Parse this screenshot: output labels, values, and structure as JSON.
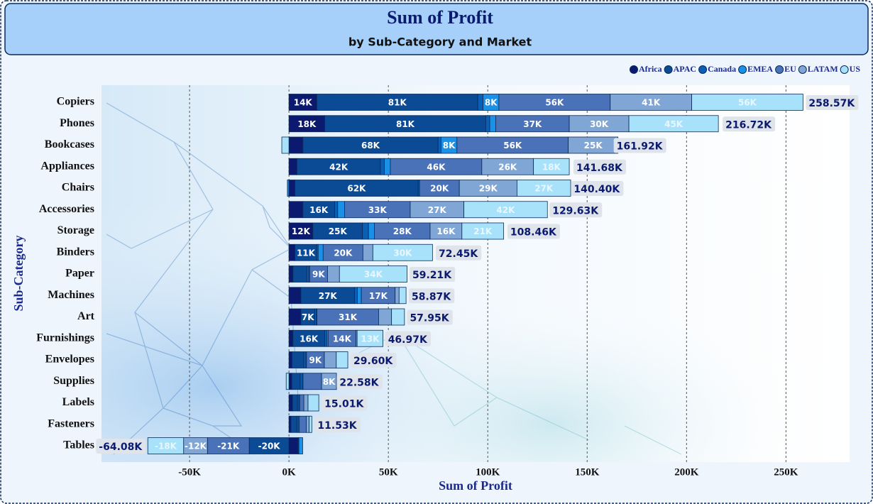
{
  "chart_data": {
    "type": "stacked-bar-horizontal",
    "title": "Sum of Profit",
    "subtitle": "by Sub-Category and Market",
    "x_label": "Sum of Profit",
    "y_label": "Sub-Category",
    "legend_position": "top-right",
    "grid": true,
    "categories": [
      "Copiers",
      "Phones",
      "Bookcases",
      "Appliances",
      "Chairs",
      "Accessories",
      "Storage",
      "Binders",
      "Paper",
      "Machines",
      "Art",
      "Furnishings",
      "Envelopes",
      "Supplies",
      "Labels",
      "Fasteners",
      "Tables"
    ],
    "series": [
      {
        "name": "Africa",
        "color": "#0b1a6e",
        "values": [
          14000,
          18000,
          7000,
          4000,
          3000,
          7000,
          12000,
          3000,
          2000,
          6000,
          6000,
          2000,
          1500,
          1400,
          1800,
          1000,
          4600
        ],
        "value_labels": [
          "14K",
          "18K",
          null,
          null,
          null,
          null,
          "12K",
          null,
          null,
          null,
          null,
          null,
          null,
          null,
          null,
          null,
          null
        ]
      },
      {
        "name": "APAC",
        "color": "#0b4a94",
        "values": [
          81000,
          81000,
          68000,
          42000,
          62000,
          16000,
          25000,
          11000,
          7000,
          27000,
          7000,
          16000,
          6000,
          4300,
          2500,
          3000,
          -20000
        ],
        "value_labels": [
          "81K",
          "81K",
          "68K",
          "42K",
          "62K",
          "16K",
          "25K",
          "11K",
          null,
          "27K",
          "7K",
          "16K",
          null,
          null,
          null,
          null,
          "-20K"
        ]
      },
      {
        "name": "Canada",
        "color": "#0a60b4",
        "values": [
          2600,
          2000,
          1500,
          2000,
          700,
          1500,
          3000,
          700,
          1000,
          1400,
          700,
          1000,
          1000,
          1000,
          700,
          700,
          400
        ]
      },
      {
        "name": "EMEA",
        "color": "#1a90e6",
        "values": [
          8000,
          3000,
          8000,
          3000,
          -800,
          3500,
          3000,
          2500,
          400,
          2000,
          400,
          700,
          300,
          400,
          400,
          500,
          1900
        ],
        "value_labels": [
          "8K",
          null,
          "8K",
          null,
          null,
          null,
          null,
          null,
          null,
          null,
          null,
          null,
          null,
          null,
          null,
          null,
          null
        ]
      },
      {
        "name": "EU",
        "color": "#4a72b8",
        "values": [
          56000,
          37000,
          56000,
          46000,
          20000,
          33000,
          28000,
          20000,
          9000,
          17000,
          31000,
          14000,
          9000,
          9300,
          2100,
          3500,
          -21000
        ],
        "value_labels": [
          "56K",
          "37K",
          "56K",
          "46K",
          "20K",
          "33K",
          "28K",
          "20K",
          "9K",
          "17K",
          "31K",
          "14K",
          "9K",
          null,
          null,
          null,
          "-21K"
        ]
      },
      {
        "name": "LATAM",
        "color": "#80a6d6",
        "values": [
          41000,
          30000,
          25000,
          26000,
          29000,
          27000,
          16000,
          5000,
          6000,
          2000,
          6500,
          600,
          6000,
          7500,
          2100,
          1500,
          -12000
        ],
        "value_labels": [
          "41K",
          "30K",
          "25K",
          "26K",
          "29K",
          "27K",
          "16K",
          null,
          null,
          null,
          null,
          null,
          null,
          "8K",
          null,
          null,
          "-12K"
        ]
      },
      {
        "name": "US",
        "color": "#a8e2fa",
        "values": [
          55970,
          45000,
          -3600,
          18000,
          27000,
          42000,
          21000,
          30000,
          34000,
          3500,
          6500,
          13000,
          5800,
          -1400,
          5400,
          1300,
          -18000
        ],
        "value_labels": [
          "56K",
          "45K",
          null,
          "18K",
          "27K",
          "42K",
          "21K",
          "30K",
          "34K",
          null,
          null,
          "13K",
          null,
          null,
          null,
          null,
          "-18K"
        ]
      }
    ],
    "totals": [
      258570,
      216720,
      161920,
      141680,
      140400,
      129630,
      108460,
      72450,
      59210,
      58870,
      57950,
      46970,
      29600,
      22580,
      15010,
      11530,
      -64080
    ],
    "total_labels": [
      "258.57K",
      "216.72K",
      "161.92K",
      "141.68K",
      "140.40K",
      "129.63K",
      "108.46K",
      "72.45K",
      "59.21K",
      "58.87K",
      "57.95K",
      "46.97K",
      "29.60K",
      "22.58K",
      "15.01K",
      "11.53K",
      "-64.08K"
    ],
    "xlim": [
      -94300,
      282000
    ],
    "xticks": [
      {
        "value": -50000,
        "label": "-50K"
      },
      {
        "value": 0,
        "label": "0K"
      },
      {
        "value": 50000,
        "label": "50K"
      },
      {
        "value": 100000,
        "label": "100K"
      },
      {
        "value": 150000,
        "label": "150K"
      },
      {
        "value": 200000,
        "label": "200K"
      },
      {
        "value": 250000,
        "label": "250K"
      }
    ]
  }
}
